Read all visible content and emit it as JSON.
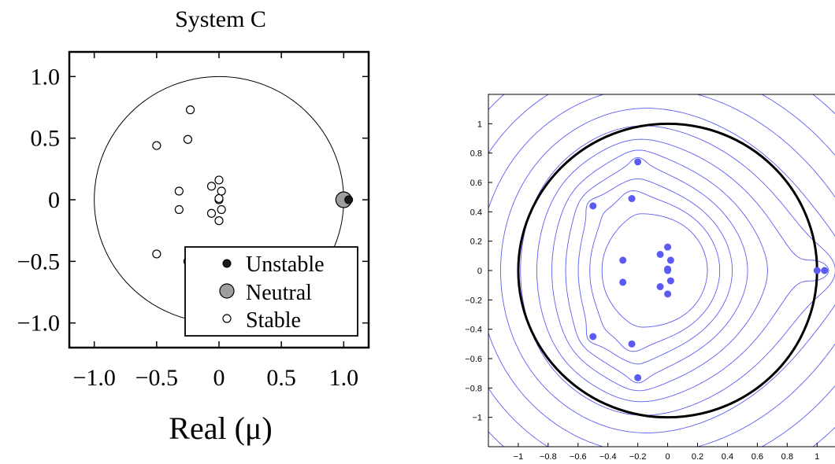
{
  "chart_data": [
    {
      "type": "scatter",
      "title": "System C",
      "xlabel": "Real (μ)",
      "ylabel": "",
      "xlim": [
        -1.2,
        1.2
      ],
      "ylim": [
        -1.2,
        1.2
      ],
      "x_ticks": [
        -1.0,
        -0.5,
        0,
        0.5,
        1.0
      ],
      "x_tick_labels": [
        "−1.0",
        "−0.5",
        "0",
        "0.5",
        "1.0"
      ],
      "y_ticks": [
        1.0,
        0.5,
        0,
        -0.5,
        -1.0
      ],
      "y_tick_labels": [
        "1.0",
        "0.5",
        "0",
        "−0.5",
        "−1.0"
      ],
      "unit_circle": {
        "center": [
          0,
          0
        ],
        "radius": 1.0
      },
      "legend": {
        "position": "bottom-right"
      },
      "series": [
        {
          "name": "Unstable",
          "marker": "filled-black",
          "color": "#1a1a1a",
          "points": [
            [
              1.04,
              0.0
            ]
          ]
        },
        {
          "name": "Neutral",
          "marker": "gray-circle-large",
          "color": "#9e9e9e",
          "points": [
            [
              1.0,
              0.0
            ]
          ]
        },
        {
          "name": "Stable",
          "marker": "hollow-circle",
          "color": "#000000",
          "points": [
            [
              -0.23,
              0.73
            ],
            [
              -0.5,
              0.44
            ],
            [
              -0.25,
              0.49
            ],
            [
              -0.32,
              0.07
            ],
            [
              -0.32,
              -0.08
            ],
            [
              0.0,
              0.16
            ],
            [
              -0.06,
              0.11
            ],
            [
              0.02,
              0.07
            ],
            [
              0.0,
              0.0
            ],
            [
              0.0,
              0.01
            ],
            [
              0.02,
              -0.08
            ],
            [
              -0.06,
              -0.11
            ],
            [
              0.0,
              -0.17
            ],
            [
              -0.5,
              -0.44
            ],
            [
              -0.25,
              -0.5
            ],
            [
              -0.23,
              -0.73
            ]
          ]
        }
      ]
    },
    {
      "type": "scatter",
      "title": "",
      "xlabel": "",
      "ylabel": "",
      "xlim": [
        -1.2,
        1.12
      ],
      "ylim": [
        -1.2,
        1.2
      ],
      "x_ticks": [
        -1,
        -0.8,
        -0.6,
        -0.4,
        -0.2,
        0,
        0.2,
        0.4,
        0.6,
        0.8,
        1
      ],
      "x_tick_labels": [
        "−1",
        "−0.8",
        "−0.6",
        "−0.4",
        "−0.2",
        "0",
        "0.2",
        "0.4",
        "0.6",
        "0.8",
        "1"
      ],
      "y_ticks": [
        1,
        0.8,
        0.6,
        0.4,
        0.2,
        0,
        -0.2,
        -0.4,
        -0.6,
        -0.8,
        -1
      ],
      "y_tick_labels": [
        "1",
        "0.8",
        "0.6",
        "0.4",
        "0.2",
        "0",
        "−0.2",
        "−0.4",
        "−0.6",
        "−0.8",
        "−1"
      ],
      "unit_circle": {
        "center": [
          0,
          0
        ],
        "radius": 1.0
      },
      "contour_color": "#5b5ef0",
      "point_color": "#5a5af5",
      "contour_levels": [
        -3.2,
        -2.6,
        -2.1,
        -1.6,
        -1.1,
        -0.6,
        -0.1,
        0.45,
        1.0,
        1.55,
        2.1,
        2.65
      ],
      "points": [
        [
          -0.2,
          0.74
        ],
        [
          -0.5,
          0.44
        ],
        [
          -0.24,
          0.49
        ],
        [
          -0.3,
          0.07
        ],
        [
          -0.3,
          -0.08
        ],
        [
          0.0,
          0.16
        ],
        [
          -0.05,
          0.11
        ],
        [
          0.02,
          0.07
        ],
        [
          0.0,
          0.01
        ],
        [
          0.0,
          0.0
        ],
        [
          0.02,
          -0.07
        ],
        [
          -0.05,
          -0.11
        ],
        [
          0.0,
          -0.16
        ],
        [
          -0.5,
          -0.45
        ],
        [
          -0.24,
          -0.5
        ],
        [
          -0.2,
          -0.73
        ],
        [
          1.0,
          0.0
        ],
        [
          1.05,
          0.0
        ]
      ]
    }
  ]
}
